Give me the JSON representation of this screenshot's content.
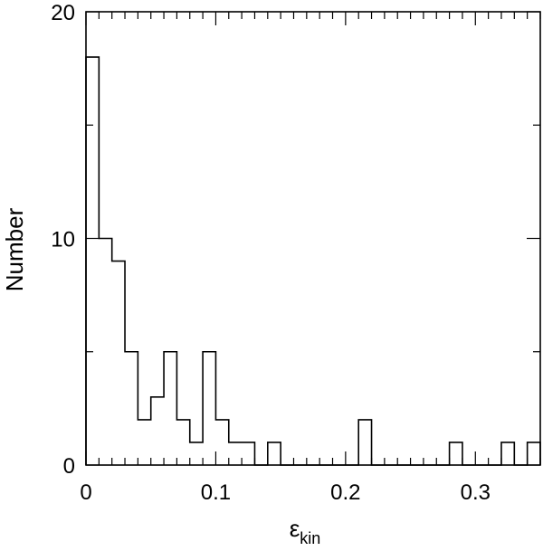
{
  "chart_data": {
    "type": "bar",
    "title": "",
    "xlabel": "ε",
    "xlabel_subscript": "kin",
    "ylabel": "Number",
    "xlim": [
      0,
      0.35
    ],
    "ylim": [
      0,
      20
    ],
    "grid": false,
    "bin_width": 0.01,
    "bins": [
      {
        "x0": 0.0,
        "x1": 0.01,
        "value": 18
      },
      {
        "x0": 0.01,
        "x1": 0.02,
        "value": 10
      },
      {
        "x0": 0.02,
        "x1": 0.03,
        "value": 9
      },
      {
        "x0": 0.03,
        "x1": 0.04,
        "value": 5
      },
      {
        "x0": 0.04,
        "x1": 0.05,
        "value": 2
      },
      {
        "x0": 0.05,
        "x1": 0.06,
        "value": 3
      },
      {
        "x0": 0.06,
        "x1": 0.07,
        "value": 5
      },
      {
        "x0": 0.07,
        "x1": 0.08,
        "value": 2
      },
      {
        "x0": 0.08,
        "x1": 0.09,
        "value": 1
      },
      {
        "x0": 0.09,
        "x1": 0.1,
        "value": 5
      },
      {
        "x0": 0.1,
        "x1": 0.11,
        "value": 2
      },
      {
        "x0": 0.11,
        "x1": 0.12,
        "value": 1
      },
      {
        "x0": 0.12,
        "x1": 0.13,
        "value": 1
      },
      {
        "x0": 0.13,
        "x1": 0.14,
        "value": 0
      },
      {
        "x0": 0.14,
        "x1": 0.15,
        "value": 1
      },
      {
        "x0": 0.15,
        "x1": 0.16,
        "value": 0
      },
      {
        "x0": 0.16,
        "x1": 0.17,
        "value": 0
      },
      {
        "x0": 0.17,
        "x1": 0.18,
        "value": 0
      },
      {
        "x0": 0.18,
        "x1": 0.19,
        "value": 0
      },
      {
        "x0": 0.19,
        "x1": 0.2,
        "value": 0
      },
      {
        "x0": 0.2,
        "x1": 0.21,
        "value": 0
      },
      {
        "x0": 0.21,
        "x1": 0.22,
        "value": 2
      },
      {
        "x0": 0.22,
        "x1": 0.23,
        "value": 0
      },
      {
        "x0": 0.23,
        "x1": 0.24,
        "value": 0
      },
      {
        "x0": 0.24,
        "x1": 0.25,
        "value": 0
      },
      {
        "x0": 0.25,
        "x1": 0.26,
        "value": 0
      },
      {
        "x0": 0.26,
        "x1": 0.27,
        "value": 0
      },
      {
        "x0": 0.27,
        "x1": 0.28,
        "value": 0
      },
      {
        "x0": 0.28,
        "x1": 0.29,
        "value": 1
      },
      {
        "x0": 0.29,
        "x1": 0.3,
        "value": 0
      },
      {
        "x0": 0.3,
        "x1": 0.31,
        "value": 0
      },
      {
        "x0": 0.31,
        "x1": 0.32,
        "value": 0
      },
      {
        "x0": 0.32,
        "x1": 0.33,
        "value": 1
      },
      {
        "x0": 0.33,
        "x1": 0.34,
        "value": 0
      },
      {
        "x0": 0.34,
        "x1": 0.35,
        "value": 1
      }
    ],
    "x_ticks": [
      {
        "value": 0,
        "label": "0"
      },
      {
        "value": 0.1,
        "label": "0.1"
      },
      {
        "value": 0.2,
        "label": "0.2"
      },
      {
        "value": 0.3,
        "label": "0.3"
      }
    ],
    "y_ticks": [
      {
        "value": 0,
        "label": "0"
      },
      {
        "value": 10,
        "label": "10"
      },
      {
        "value": 20,
        "label": "20"
      }
    ],
    "line_color": "#000000",
    "background_color": "#ffffff"
  }
}
